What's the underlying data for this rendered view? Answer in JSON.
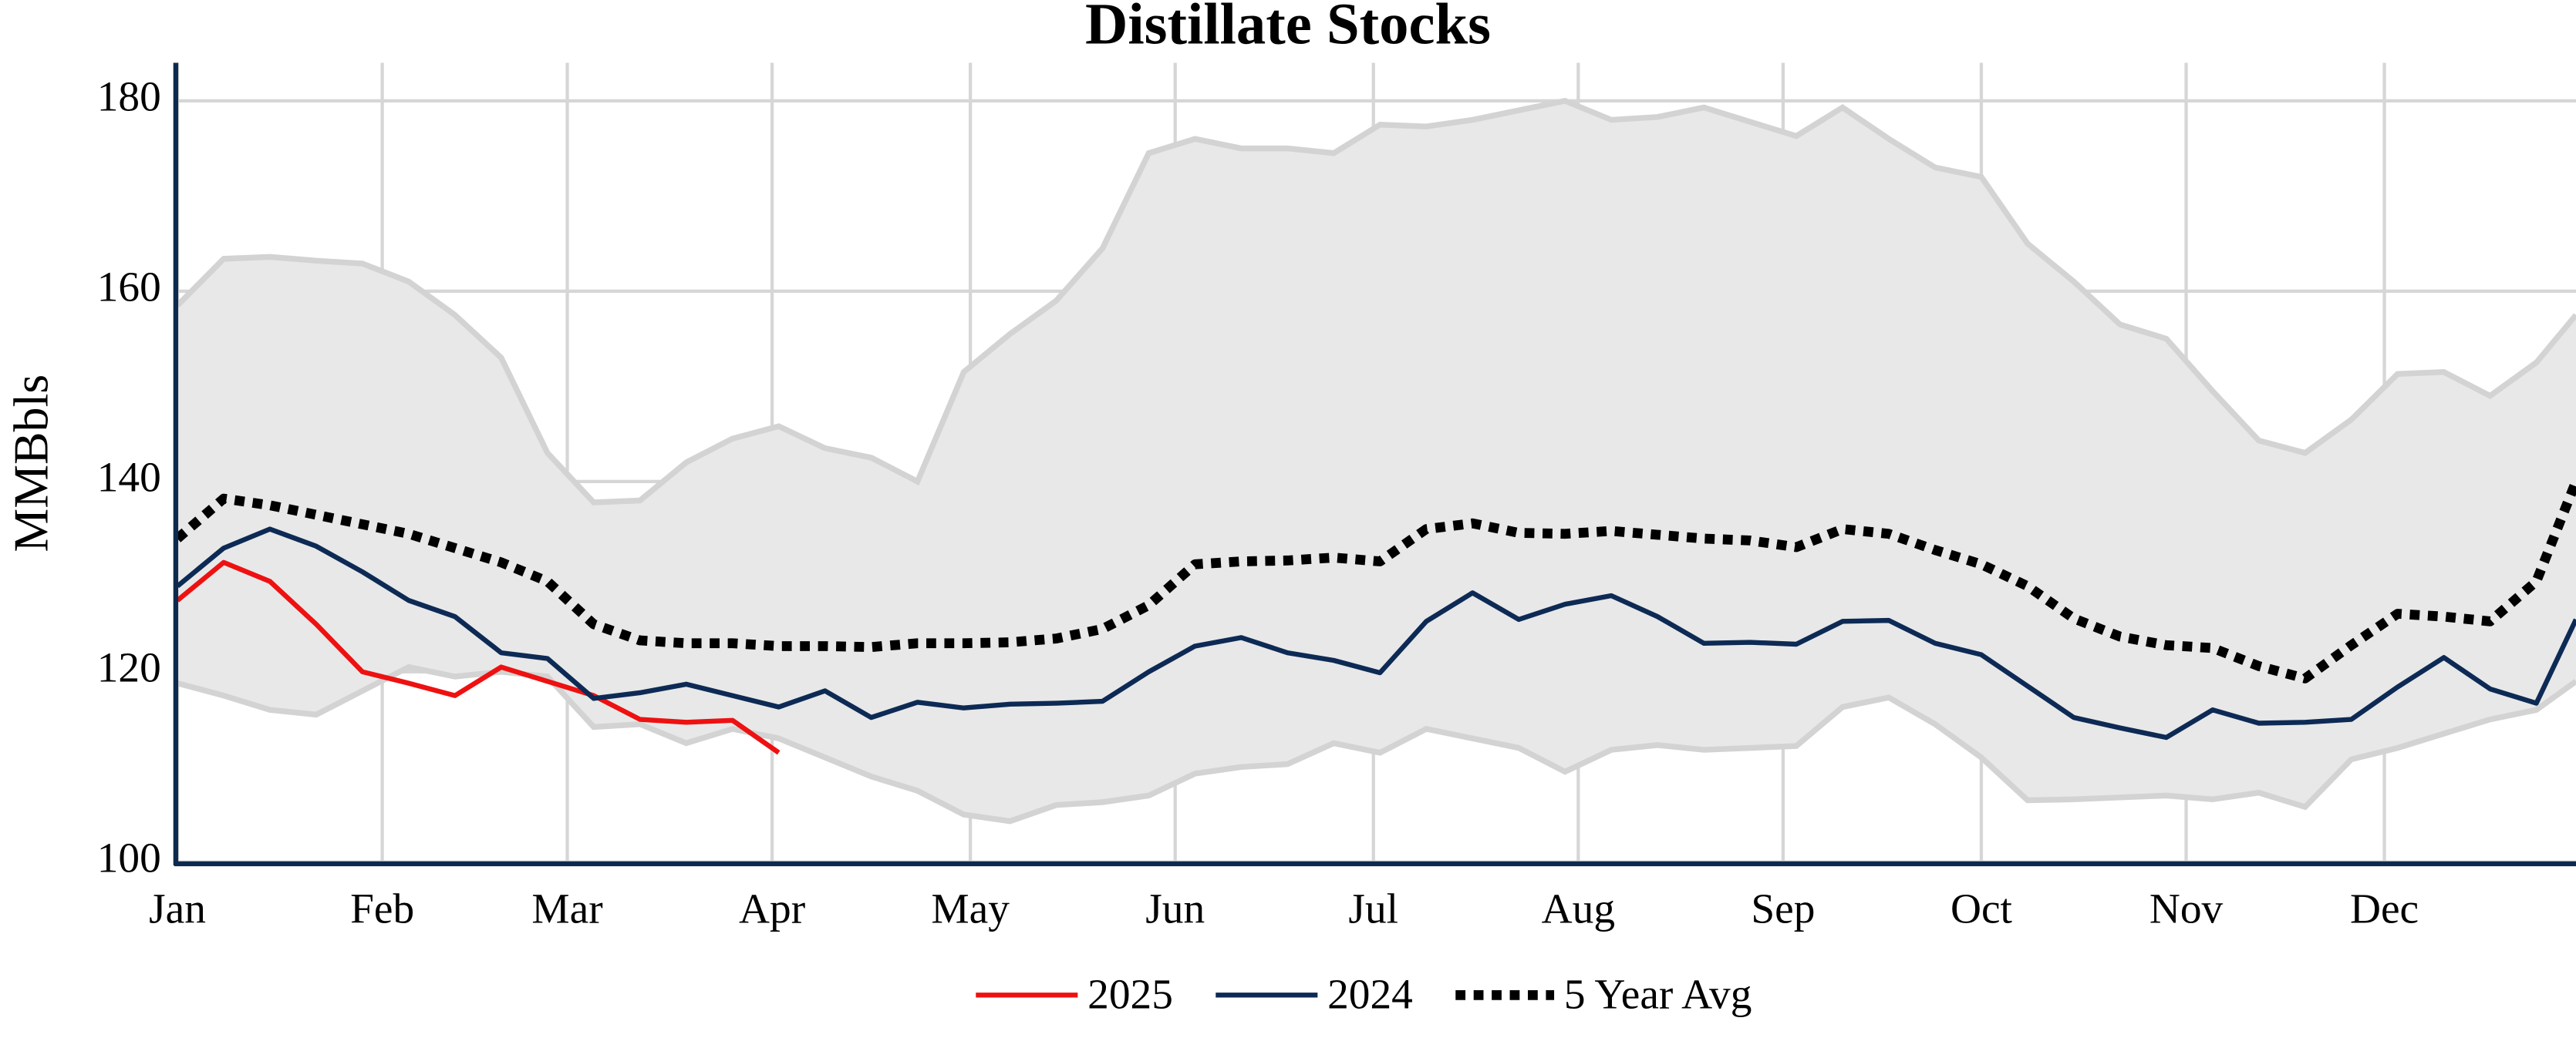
{
  "chart_data": {
    "type": "line",
    "title": "Distillate Stocks",
    "y_label": "MMBbls",
    "x": [
      0,
      7,
      14,
      21,
      28,
      35,
      42,
      49,
      56,
      63,
      70,
      77,
      84,
      91,
      98,
      105,
      112,
      119,
      126,
      133,
      140,
      147,
      154,
      161,
      168,
      175,
      182,
      189,
      196,
      203,
      210,
      217,
      224,
      231,
      238,
      245,
      252,
      259,
      266,
      273,
      280,
      287,
      294,
      301,
      308,
      315,
      322,
      329,
      336,
      343,
      350,
      357,
      363
    ],
    "xlim": [
      0,
      363
    ],
    "xticks": [
      {
        "value": 0,
        "label": "Jan"
      },
      {
        "value": 31,
        "label": "Feb"
      },
      {
        "value": 59,
        "label": "Mar"
      },
      {
        "value": 90,
        "label": "Apr"
      },
      {
        "value": 120,
        "label": "May"
      },
      {
        "value": 151,
        "label": "Jun"
      },
      {
        "value": 181,
        "label": "Jul"
      },
      {
        "value": 212,
        "label": "Aug"
      },
      {
        "value": 243,
        "label": "Sep"
      },
      {
        "value": 273,
        "label": "Oct"
      },
      {
        "value": 304,
        "label": "Nov"
      },
      {
        "value": 334,
        "label": "Dec"
      }
    ],
    "ylim": [
      100,
      184
    ],
    "yticks": [
      100,
      120,
      140,
      160,
      180
    ],
    "grid": true,
    "band": {
      "color": "#e8e8e8",
      "line_color": "#d3d3d3",
      "upper": [
        158.5,
        163.4,
        163.6,
        163.2,
        162.9,
        161,
        157.5,
        153,
        143,
        137.8,
        138,
        142,
        144.5,
        145.8,
        143.5,
        142.5,
        140,
        151.5,
        155.5,
        159,
        164.5,
        174.5,
        176,
        175,
        175,
        174.5,
        177.5,
        177.3,
        178,
        179,
        180,
        178,
        178.3,
        179.3,
        177.8,
        176.3,
        179.3,
        176,
        173,
        172,
        165,
        161,
        156.5,
        155,
        149.5,
        144.3,
        143,
        146.5,
        151.3,
        151.5,
        149,
        152.5,
        157.5
      ],
      "lower": [
        118.8,
        117.5,
        116,
        115.5,
        118,
        120.5,
        119.5,
        120,
        119.5,
        114.2,
        114.5,
        112.5,
        114,
        113,
        111,
        109,
        107.5,
        105,
        104.3,
        106,
        106.3,
        107,
        109.3,
        110,
        110.3,
        112.5,
        111.5,
        114,
        113,
        112,
        109.5,
        111.8,
        112.3,
        111.8,
        112,
        112.2,
        116.3,
        117.3,
        114.5,
        111,
        106.5,
        106.6,
        106.8,
        107,
        106.6,
        107.3,
        105.8,
        110.8,
        112,
        113.5,
        115,
        116,
        119
      ]
    },
    "series": [
      {
        "name": "2025",
        "color": "#ee1111",
        "dash": "solid",
        "values": [
          127.5,
          131.5,
          129.5,
          125,
          120,
          118.8,
          117.5,
          120.5,
          119,
          117.5,
          115,
          114.7,
          114.9,
          111.5,
          null,
          null,
          null,
          null,
          null,
          null,
          null,
          null,
          null,
          null,
          null,
          null,
          null,
          null,
          null,
          null,
          null,
          null,
          null,
          null,
          null,
          null,
          null,
          null,
          null,
          null,
          null,
          null,
          null,
          null,
          null,
          null,
          null,
          null,
          null,
          null,
          null,
          null,
          null
        ]
      },
      {
        "name": "2024",
        "color": "#0d2a55",
        "dash": "solid",
        "values": [
          129,
          133,
          135,
          133.2,
          130.5,
          127.5,
          125.8,
          122,
          121.4,
          117.2,
          117.8,
          118.7,
          117.5,
          116.3,
          118,
          115.2,
          116.8,
          116.2,
          116.6,
          116.7,
          116.9,
          120,
          122.7,
          123.6,
          122,
          121.2,
          119.9,
          125.3,
          128.3,
          125.5,
          127.1,
          128,
          125.8,
          123,
          123.1,
          122.9,
          125.3,
          125.4,
          123,
          121.8,
          118.5,
          115.2,
          114.1,
          113.1,
          116,
          114.6,
          114.7,
          115,
          118.4,
          121.5,
          118.2,
          116.7,
          125.5
        ]
      },
      {
        "name": "5 Year Avg",
        "color": "#000000",
        "dash": "dotted",
        "values": [
          134,
          138.2,
          137.5,
          136.5,
          135.5,
          134.5,
          133,
          131.5,
          129.5,
          125,
          123.3,
          123,
          123,
          122.7,
          122.7,
          122.6,
          123,
          123,
          123.1,
          123.5,
          124.5,
          127,
          131.3,
          131.6,
          131.7,
          132,
          131.6,
          135,
          135.6,
          134.6,
          134.5,
          134.8,
          134.4,
          134,
          133.8,
          133.1,
          135,
          134.5,
          132.8,
          131.3,
          129,
          125.6,
          123.7,
          122.8,
          122.5,
          120.6,
          119.3,
          122.8,
          126.1,
          125.8,
          125.3,
          129.5,
          140
        ]
      }
    ]
  }
}
